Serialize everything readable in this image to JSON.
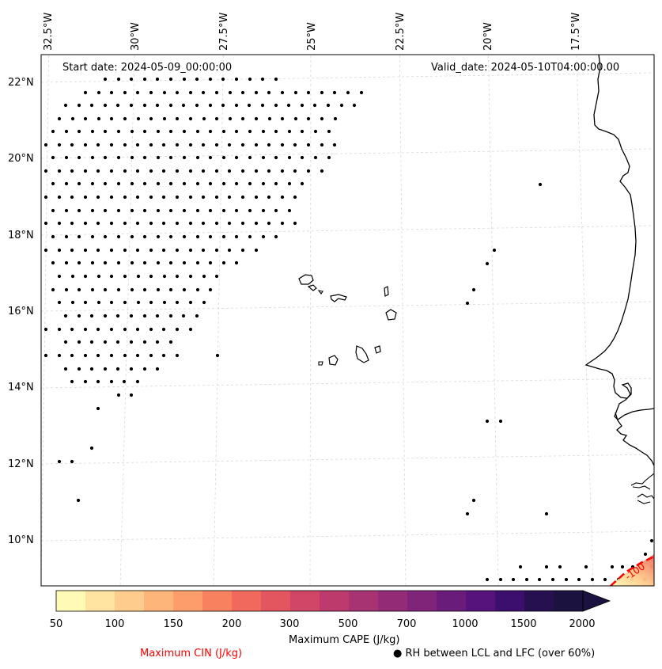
{
  "header": {
    "start_date": "Start date: 2024-05-09_00:00:00",
    "valid_date": "Valid_date: 2024-05-10T04:00:00.00"
  },
  "map": {
    "region": "Eastern North Atlantic / West Africa (Cape Verde)",
    "lon_labels": [
      "32.5°W",
      "30°W",
      "27.5°W",
      "25°W",
      "22.5°W",
      "20°W",
      "17.5°W"
    ],
    "lat_labels": [
      "22°N",
      "20°N",
      "18°N",
      "16°N",
      "14°N",
      "12°N",
      "10°N"
    ],
    "cin_contour_label": "-100",
    "colors": {
      "coastline": "#000000",
      "gridline": "#cccccc",
      "cin_contour": "#ff0000",
      "rh_dot": "#000000"
    }
  },
  "colorbar": {
    "title": "Maximum CAPE (J/kg)",
    "tick_labels": [
      "50",
      "100",
      "150",
      "200",
      "300",
      "500",
      "700",
      "1000",
      "1500",
      "2000"
    ],
    "colors": [
      "#fffbb6",
      "#fee3a1",
      "#fecc8c",
      "#feb57a",
      "#fd9d6c",
      "#f8825f",
      "#f0695c",
      "#e35660",
      "#d14566",
      "#bd3a6d",
      "#a83373",
      "#932b77",
      "#7f2478",
      "#6a1c7a",
      "#55137b",
      "#3c0f6e",
      "#271050",
      "#1c1240"
    ]
  },
  "legend": {
    "cin_label": "Maximum CIN (J/kg)",
    "cin_color": "#ff0000",
    "rh_label": "RH between LCL and LFC (over 60%)",
    "rh_symbol": "●"
  }
}
